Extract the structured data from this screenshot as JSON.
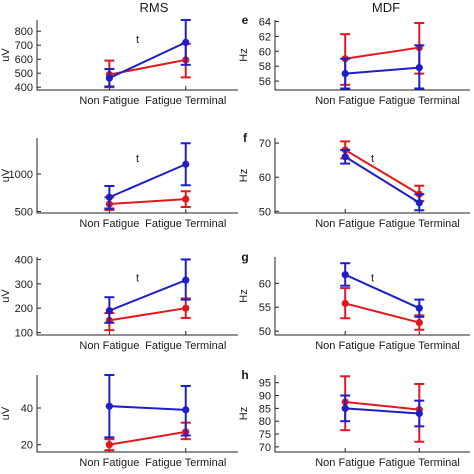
{
  "headers": {
    "left": "RMS",
    "right": "MDF"
  },
  "colors": {
    "red": "#e0191f",
    "blue": "#1f1fc8",
    "axis": "#222222"
  },
  "chart_data": [
    {
      "id": "rms-1",
      "type": "line",
      "letter": "",
      "ylabel": "uV",
      "categories": [
        "Non Fatigue",
        "Fatigue Terminal"
      ],
      "ylim": [
        380,
        880
      ],
      "yticks": [
        400,
        500,
        600,
        700,
        800
      ],
      "annotation": "t",
      "series": [
        {
          "color": "red",
          "values": [
            490,
            595
          ],
          "err_low": [
            400,
            470
          ],
          "err_high": [
            590,
            710
          ]
        },
        {
          "color": "blue",
          "values": [
            465,
            720
          ],
          "err_low": [
            405,
            560
          ],
          "err_high": [
            530,
            880
          ]
        }
      ]
    },
    {
      "id": "rms-2",
      "type": "line",
      "letter": "",
      "ylabel": "uV",
      "categories": [
        "Non Fatigue",
        "Fatigue Terminal"
      ],
      "ylim": [
        480,
        1480
      ],
      "yticks": [
        500,
        1000
      ],
      "annotation": "t",
      "series": [
        {
          "color": "red",
          "values": [
            600,
            665
          ],
          "err_low": [
            520,
            560
          ],
          "err_high": [
            690,
            770
          ]
        },
        {
          "color": "blue",
          "values": [
            690,
            1130
          ],
          "err_low": [
            540,
            850
          ],
          "err_high": [
            840,
            1410
          ]
        }
      ]
    },
    {
      "id": "rms-3",
      "type": "line",
      "letter": "",
      "ylabel": "uV",
      "categories": [
        "Non Fatigue",
        "Fatigue Terminal"
      ],
      "ylim": [
        90,
        410
      ],
      "yticks": [
        100,
        200,
        300,
        400
      ],
      "annotation": "t",
      "series": [
        {
          "color": "red",
          "values": [
            150,
            200
          ],
          "err_low": [
            110,
            160
          ],
          "err_high": [
            180,
            240
          ]
        },
        {
          "color": "blue",
          "values": [
            190,
            315
          ],
          "err_low": [
            140,
            235
          ],
          "err_high": [
            245,
            400
          ]
        }
      ]
    },
    {
      "id": "rms-4",
      "type": "line",
      "letter": "",
      "ylabel": "uV",
      "categories": [
        "Non Fatigue",
        "Fatigue Terminal"
      ],
      "ylim": [
        16,
        58
      ],
      "yticks": [
        20,
        40
      ],
      "annotation": "",
      "series": [
        {
          "color": "red",
          "values": [
            20,
            27
          ],
          "err_low": [
            17,
            23
          ],
          "err_high": [
            23,
            32
          ]
        },
        {
          "color": "blue",
          "values": [
            41,
            39
          ],
          "err_low": [
            24,
            25
          ],
          "err_high": [
            58,
            52
          ]
        }
      ]
    },
    {
      "id": "mdf-e",
      "type": "line",
      "letter": "e",
      "ylabel": "Hz",
      "categories": [
        "Non Fatigue",
        "Fatigue Terminal"
      ],
      "ylim": [
        54.8,
        64.2
      ],
      "yticks": [
        56,
        58,
        60,
        62,
        64
      ],
      "annotation": "",
      "series": [
        {
          "color": "red",
          "values": [
            59,
            60.5
          ],
          "err_low": [
            55.5,
            57
          ],
          "err_high": [
            62.3,
            63.8
          ]
        },
        {
          "color": "blue",
          "values": [
            57,
            57.8
          ],
          "err_low": [
            55,
            55
          ],
          "err_high": [
            59,
            60.8
          ]
        }
      ]
    },
    {
      "id": "mdf-f",
      "type": "line",
      "letter": "f",
      "ylabel": "Hz",
      "categories": [
        "Non Fatigue",
        "Fatigue Terminal"
      ],
      "ylim": [
        49.5,
        71.5
      ],
      "yticks": [
        50,
        60,
        70
      ],
      "annotation": "t",
      "series": [
        {
          "color": "red",
          "values": [
            68,
            55
          ],
          "err_low": [
            65.5,
            53
          ],
          "err_high": [
            70.5,
            57.5
          ]
        },
        {
          "color": "blue",
          "values": [
            66,
            52.5
          ],
          "err_low": [
            64,
            50.3
          ],
          "err_high": [
            68,
            55
          ]
        }
      ]
    },
    {
      "id": "mdf-g",
      "type": "line",
      "letter": "g",
      "ylabel": "Hz",
      "categories": [
        "Non Fatigue",
        "Fatigue Terminal"
      ],
      "ylim": [
        49.2,
        65.5
      ],
      "yticks": [
        50,
        55,
        60
      ],
      "annotation": "t",
      "series": [
        {
          "color": "red",
          "values": [
            55.8,
            51.8
          ],
          "err_low": [
            52.7,
            50.3
          ],
          "err_high": [
            59,
            53.3
          ]
        },
        {
          "color": "blue",
          "values": [
            61.8,
            54.8
          ],
          "err_low": [
            59.5,
            53
          ],
          "err_high": [
            64.2,
            56.6
          ]
        }
      ]
    },
    {
      "id": "mdf-h",
      "type": "line",
      "letter": "h",
      "ylabel": "Hz",
      "categories": [
        "Non Fatigue",
        "Fatigue Terminal"
      ],
      "ylim": [
        68,
        98
      ],
      "yticks": [
        70,
        75,
        80,
        85,
        90,
        95
      ],
      "annotation": "",
      "series": [
        {
          "color": "red",
          "values": [
            87.5,
            84.5
          ],
          "err_low": [
            76.5,
            72
          ],
          "err_high": [
            97.5,
            94.5
          ]
        },
        {
          "color": "blue",
          "values": [
            85,
            83
          ],
          "err_low": [
            80,
            78
          ],
          "err_high": [
            90,
            88
          ]
        }
      ]
    }
  ]
}
